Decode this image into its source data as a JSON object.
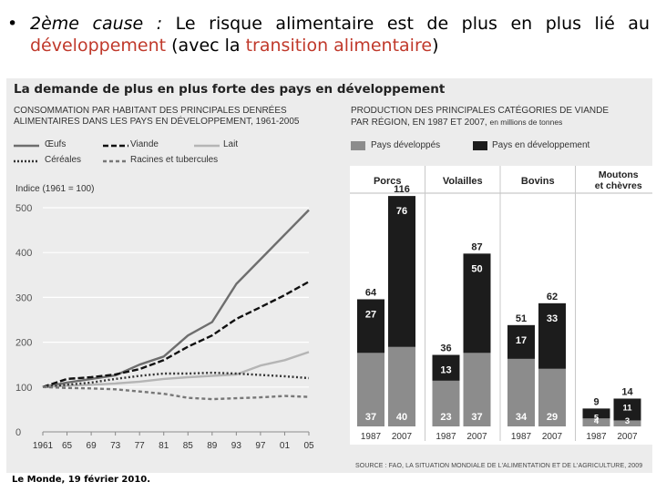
{
  "slide": {
    "bullet": "•",
    "cause_label": "2ème cause :",
    "text_line1": "Le risque alimentaire est de plus en plus lié au",
    "text_line2_red1": "développement",
    "text_line2_mid": "(avec la",
    "text_line2_red2": "transition alimentaire",
    "text_line2_end": ")"
  },
  "figure": {
    "title": "La demande de plus en plus forte des pays en développement",
    "left_subtitle_1": "Consommation par habitant des principales denrées",
    "left_subtitle_2": "alimentaires dans les pays en développement, 1961-2005",
    "right_subtitle_1": "Production des principales catégories de viande",
    "right_subtitle_2": "par région, en 1987 et 2007,",
    "right_subtitle_tail": "en millions de tonnes",
    "source": "SOURCE : FAO, LA SITUATION MONDIALE DE L'ALIMENTATION ET DE L'AGRICULTURE, 2009",
    "credit": "Le Monde, 19 février 2010."
  },
  "chart_data": [
    {
      "type": "line",
      "ylabel": "Indice (1961 = 100)",
      "ylim": [
        0,
        500
      ],
      "yticks": [
        0,
        100,
        200,
        300,
        400,
        500
      ],
      "x_ticks": [
        "1961",
        "65",
        "69",
        "73",
        "77",
        "81",
        "85",
        "89",
        "93",
        "97",
        "01",
        "05"
      ],
      "x": [
        1961,
        1965,
        1969,
        1973,
        1977,
        1981,
        1985,
        1989,
        1993,
        1997,
        2001,
        2005
      ],
      "grid": true,
      "legend_position": "top",
      "series": [
        {
          "name": "Œufs",
          "style": "solid",
          "color": "#6e6e6e",
          "values": [
            100,
            110,
            118,
            126,
            150,
            168,
            215,
            245,
            330,
            385,
            440,
            495
          ]
        },
        {
          "name": "Viande",
          "style": "dashed",
          "color": "#111111",
          "values": [
            100,
            118,
            122,
            128,
            140,
            160,
            190,
            215,
            252,
            278,
            305,
            335
          ]
        },
        {
          "name": "Lait",
          "style": "solid",
          "color": "#b5b5b5",
          "values": [
            100,
            103,
            105,
            108,
            112,
            118,
            122,
            125,
            128,
            148,
            160,
            178
          ]
        },
        {
          "name": "Céréales",
          "style": "dotted",
          "color": "#333333",
          "values": [
            100,
            105,
            110,
            118,
            125,
            130,
            130,
            132,
            130,
            127,
            124,
            120
          ]
        },
        {
          "name": "Racines et tubercules",
          "style": "dashed",
          "color": "#777777",
          "values": [
            100,
            98,
            97,
            95,
            90,
            85,
            76,
            73,
            75,
            77,
            80,
            78
          ]
        }
      ]
    },
    {
      "type": "bar",
      "stacked": true,
      "legend_position": "top",
      "series_names": [
        "Pays développés",
        "Pays en développement"
      ],
      "colors": {
        "developed": "#8c8c8c",
        "developing": "#1c1c1c"
      },
      "groups": [
        {
          "name": "Porcs",
          "bars": [
            {
              "year": "1987",
              "developed": 37,
              "developing": 27,
              "total": 64
            },
            {
              "year": "2007",
              "developed": 40,
              "developing": 76,
              "total": 116
            }
          ]
        },
        {
          "name": "Volailles",
          "bars": [
            {
              "year": "1987",
              "developed": 23,
              "developing": 13,
              "total": 36
            },
            {
              "year": "2007",
              "developed": 37,
              "developing": 50,
              "total": 87
            }
          ]
        },
        {
          "name": "Bovins",
          "bars": [
            {
              "year": "1987",
              "developed": 34,
              "developing": 17,
              "total": 51
            },
            {
              "year": "2007",
              "developed": 29,
              "developing": 33,
              "total": 62
            }
          ]
        },
        {
          "name": "Moutons et chèvres",
          "bars": [
            {
              "year": "1987",
              "developed": 4,
              "developing": 5,
              "total": 9
            },
            {
              "year": "2007",
              "developed": 3,
              "developing": 11,
              "total": 14
            }
          ]
        }
      ]
    }
  ]
}
